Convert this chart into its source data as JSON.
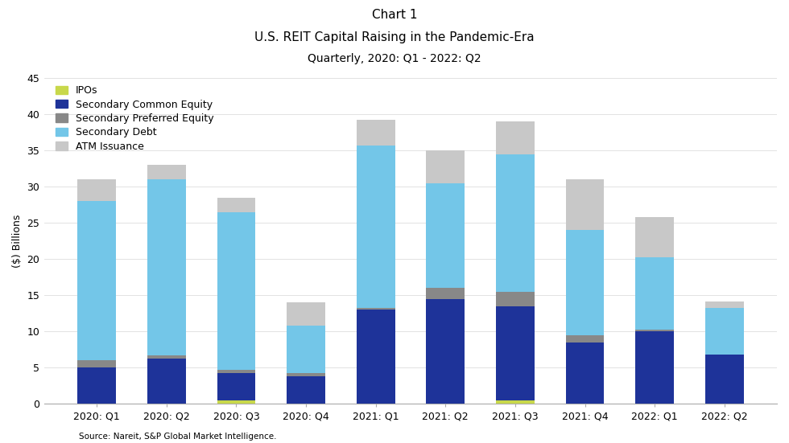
{
  "title_line1": "Chart 1",
  "title_line2": "U.S. REIT Capital Raising in the Pandemic-Era",
  "title_line3": "Quarterly, 2020: Q1 - 2022: Q2",
  "source": "Source: Nareit, S&P Global Market Intelligence.",
  "ylabel": "($) Billions",
  "categories": [
    "2020: Q1",
    "2020: Q2",
    "2020: Q3",
    "2020: Q4",
    "2021: Q1",
    "2021: Q2",
    "2021: Q3",
    "2021: Q4",
    "2022: Q1",
    "2022: Q2"
  ],
  "series": {
    "IPOs": [
      0.0,
      0.0,
      0.5,
      0.0,
      0.0,
      0.0,
      0.5,
      0.0,
      0.0,
      0.0
    ],
    "Secondary Common Equity": [
      5.0,
      6.2,
      3.8,
      3.8,
      13.0,
      14.5,
      13.0,
      8.5,
      10.0,
      6.8
    ],
    "Secondary Preferred Equity": [
      1.0,
      0.5,
      0.4,
      0.5,
      0.2,
      1.5,
      2.0,
      1.0,
      0.3,
      0.0
    ],
    "Secondary Debt": [
      22.0,
      24.3,
      21.8,
      6.5,
      22.5,
      14.5,
      19.0,
      14.5,
      10.0,
      6.5
    ],
    "ATM Issuance": [
      3.0,
      2.0,
      2.0,
      3.2,
      3.5,
      4.5,
      4.5,
      7.0,
      5.5,
      0.8
    ]
  },
  "colors": {
    "IPOs": "#c8d84b",
    "Secondary Common Equity": "#1e3399",
    "Secondary Preferred Equity": "#888888",
    "Secondary Debt": "#73c6e8",
    "ATM Issuance": "#c8c8c8"
  },
  "ylim": [
    0,
    45
  ],
  "yticks": [
    0,
    5,
    10,
    15,
    20,
    25,
    30,
    35,
    40,
    45
  ],
  "bar_width": 0.55,
  "legend_order": [
    "IPOs",
    "Secondary Common Equity",
    "Secondary Preferred Equity",
    "Secondary Debt",
    "ATM Issuance"
  ],
  "background_color": "#ffffff",
  "title_fontsize": 11,
  "subtitle_fontsize": 11,
  "sub2_fontsize": 10,
  "axis_label_fontsize": 9,
  "tick_fontsize": 9,
  "legend_fontsize": 9
}
